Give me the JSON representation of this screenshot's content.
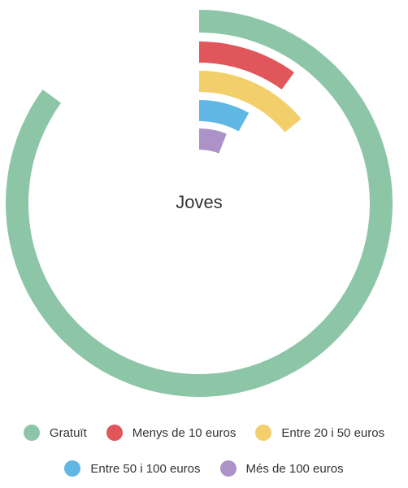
{
  "chart_data": {
    "type": "radial-bar",
    "title": "Joves",
    "max": 100,
    "series": [
      {
        "name": "Gratuït",
        "value": 85,
        "color": "#8dc5a7"
      },
      {
        "name": "Menys de 10 euros",
        "value": 10,
        "color": "#e0565b"
      },
      {
        "name": "Entre 20 i 50 euros",
        "value": 14,
        "color": "#f2cf6b"
      },
      {
        "name": "Entre 50 i 100 euros",
        "value": 8,
        "color": "#60b7e4"
      },
      {
        "name": "Més de 100 euros",
        "value": 6,
        "color": "#ab93c8"
      }
    ],
    "legend_position": "bottom"
  }
}
